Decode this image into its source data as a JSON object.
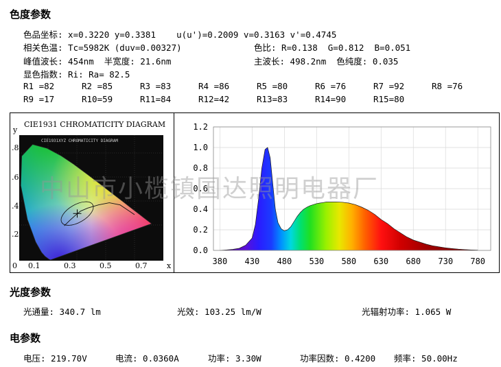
{
  "chroma": {
    "heading": "色度参数",
    "line1": "色品坐标: x=0.3220 y=0.3381    u(u')=0.2009 v=0.3163 v'=0.4745",
    "line2a": "相关色温: Tc=5982K (duv=0.00327)",
    "line2b": "色比: R=0.138  G=0.812  B=0.051",
    "line3a": "峰值波长: 454nm  半宽度: 21.6nm",
    "line3b": "主波长: 498.2nm  色纯度: 0.035",
    "line4": "显色指数: Ri: Ra= 82.5",
    "ri": [
      "R1 =82",
      "R2 =85",
      "R3 =83",
      "R4 =86",
      "R5 =80",
      "R6 =76",
      "R7 =92",
      "R8 =76",
      "R9 =17",
      "R10=59",
      "R11=84",
      "R12=42",
      "R13=83",
      "R14=90",
      "R15=80"
    ]
  },
  "cie": {
    "title": "CIE1931 CHROMATICITY DIAGRAM",
    "inner_title": "CIE1931XYZ CHROMATICITY DIAGRAM",
    "y_axis_label": "y",
    "x_axis_label": "x",
    "x_ticks": [
      "0",
      "0.1",
      "0.3",
      "0.5",
      "0.7"
    ],
    "y_ticks": [
      ".8",
      ".6",
      ".4",
      ".2"
    ],
    "point": {
      "x": 0.322,
      "y": 0.3381
    }
  },
  "chart_data": {
    "type": "area",
    "title": "",
    "xlabel": "",
    "ylabel": "",
    "xlim": [
      370,
      800
    ],
    "ylim": [
      0,
      1.2
    ],
    "x_ticks": [
      380,
      430,
      480,
      530,
      580,
      630,
      680,
      730,
      780
    ],
    "y_ticks": [
      "0.0",
      "0.2",
      "0.4",
      "0.6",
      "0.8",
      "1.0",
      "1.2"
    ],
    "grid": true,
    "x": [
      380,
      390,
      400,
      410,
      420,
      430,
      435,
      440,
      445,
      450,
      454,
      458,
      462,
      466,
      470,
      475,
      480,
      485,
      490,
      495,
      500,
      505,
      510,
      515,
      520,
      525,
      530,
      535,
      540,
      545,
      550,
      560,
      570,
      580,
      590,
      600,
      610,
      620,
      630,
      640,
      650,
      660,
      670,
      680,
      690,
      700,
      710,
      720,
      730,
      740,
      750,
      760,
      770,
      780
    ],
    "values": [
      0.0,
      0.005,
      0.01,
      0.02,
      0.05,
      0.12,
      0.25,
      0.5,
      0.8,
      0.98,
      1.0,
      0.9,
      0.65,
      0.4,
      0.27,
      0.21,
      0.19,
      0.2,
      0.23,
      0.28,
      0.33,
      0.37,
      0.4,
      0.42,
      0.435,
      0.445,
      0.455,
      0.46,
      0.465,
      0.47,
      0.47,
      0.47,
      0.468,
      0.46,
      0.445,
      0.42,
      0.39,
      0.35,
      0.3,
      0.26,
      0.21,
      0.17,
      0.13,
      0.1,
      0.08,
      0.06,
      0.045,
      0.035,
      0.025,
      0.018,
      0.012,
      0.008,
      0.005,
      0.003
    ]
  },
  "watermark": "中山市小榄镇国达照明电器厂",
  "photo": {
    "heading": "光度参数",
    "flux": "光通量: 340.7 lm",
    "efficacy": "光效: 103.25 lm/W",
    "radiant": "光辐射功率: 1.065 W"
  },
  "elec": {
    "heading": "电参数",
    "voltage": "电压: 219.70V",
    "current": "电流: 0.0360A",
    "power": "功率: 3.30W",
    "pf": "功率因数: 0.4200",
    "freq": "频率: 50.00Hz"
  }
}
